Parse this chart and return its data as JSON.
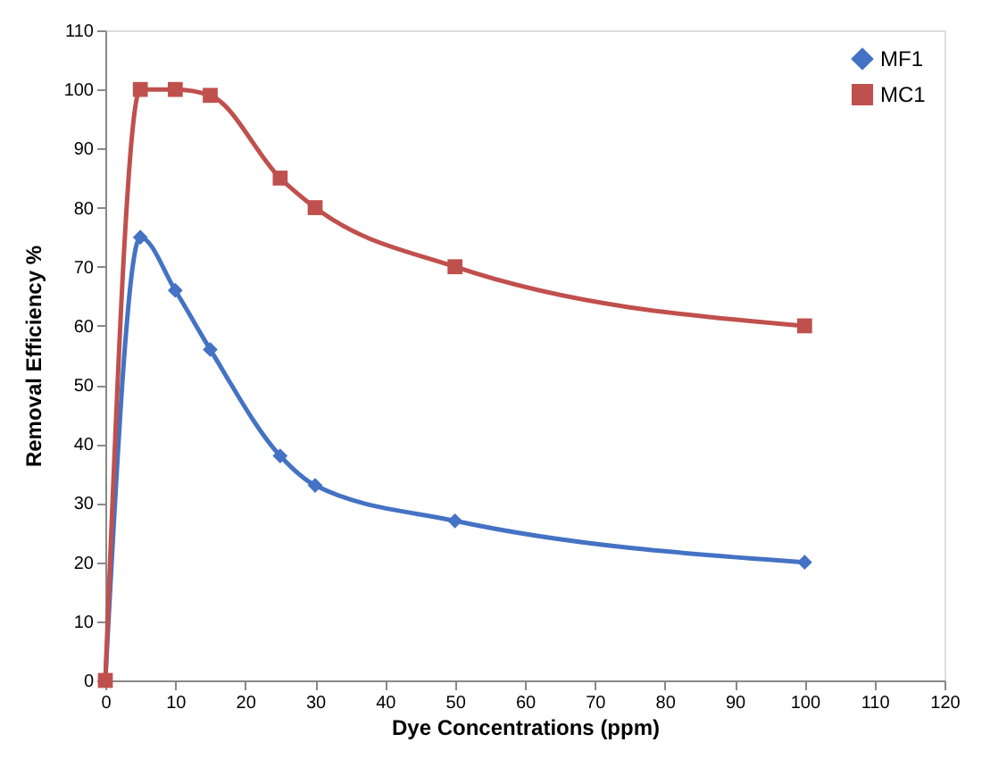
{
  "chart_data": {
    "type": "line",
    "xlabel": "Dye Concentrations (ppm)",
    "ylabel": "Removal  Efficiency %",
    "x": [
      0,
      5,
      10,
      15,
      25,
      30,
      50,
      100
    ],
    "series": [
      {
        "name": "MF1",
        "color": "#4472c4",
        "marker": "diamond",
        "values": [
          0,
          75,
          66,
          56,
          38,
          33,
          27,
          20
        ]
      },
      {
        "name": "MC1",
        "color": "#c0504d",
        "marker": "square",
        "values": [
          0,
          100,
          100,
          99,
          85,
          80,
          70,
          60
        ]
      }
    ],
    "xlim": [
      0,
      120
    ],
    "xticks": [
      0,
      10,
      20,
      30,
      40,
      50,
      60,
      70,
      80,
      90,
      100,
      110,
      120
    ],
    "ylim": [
      0,
      110
    ],
    "yticks": [
      0,
      10,
      20,
      30,
      40,
      50,
      60,
      70,
      80,
      90,
      100,
      110
    ],
    "grid": false,
    "legend": "top right",
    "line_style": "solid"
  }
}
